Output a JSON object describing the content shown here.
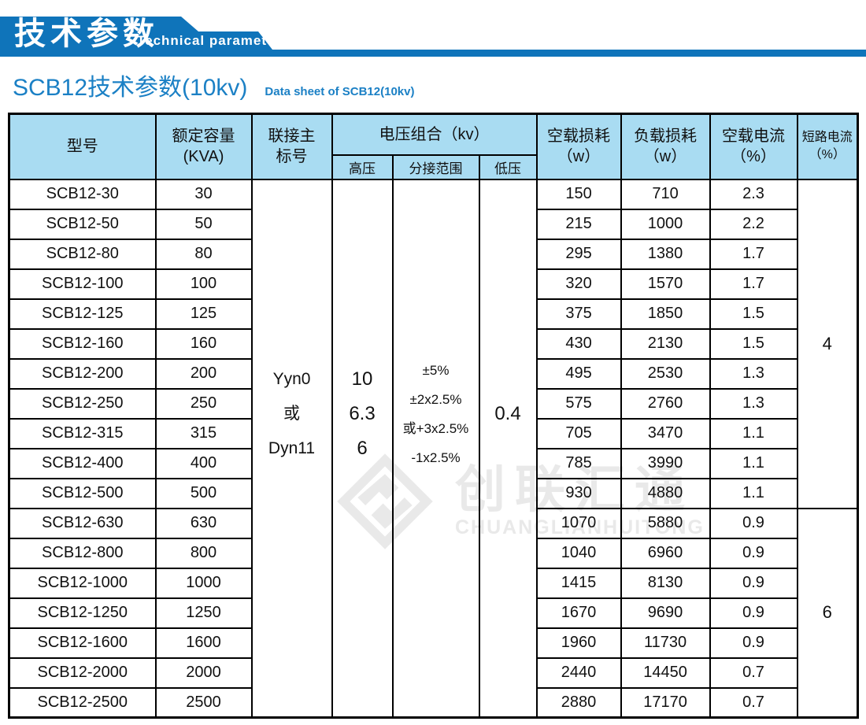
{
  "colors": {
    "banner_bg": "#0f74ba",
    "subtitle_text": "#1b80c5",
    "table_header_bg": "#a9dcf2",
    "watermark_gray": "#e9e9e9"
  },
  "banner": {
    "title_cn": "技术参数",
    "title_en": "Technical parameter"
  },
  "subtitle": {
    "text_cn": "SCB12技术参数(10kv)",
    "text_en": "Data sheet of SCB12(10kv)"
  },
  "watermark": {
    "logo": "diamond-logo",
    "text_cn": "创联汇通",
    "text_en": "CHUANGLIANHUITONG"
  },
  "table": {
    "header": {
      "model": "型号",
      "capacity_line1": "额定容量",
      "capacity_line2": "(KVA)",
      "connection_line1": "联接主",
      "connection_line2": "标号",
      "voltage_group": "电压组合（kv）",
      "hv": "高压",
      "tap_range": "分接范围",
      "lv": "低压",
      "no_load_loss_line1": "空载损耗",
      "no_load_loss_line2": "（w）",
      "load_loss_line1": "负载损耗",
      "load_loss_line2": "（w）",
      "no_load_current_line1": "空载电流",
      "no_load_current_line2": "（%）",
      "short_circuit_line1": "短路电流",
      "short_circuit_line2": "（%）"
    },
    "merged": {
      "connection_lines": [
        "Yyn0",
        "或",
        "Dyn11"
      ],
      "hv_lines": [
        "10",
        "6.3",
        "6"
      ],
      "tap_lines": [
        "±5%",
        "±2x2.5%",
        "或+3x2.5%",
        "-1x2.5%"
      ],
      "lv": "0.4",
      "short_circuit_group1": "4",
      "short_circuit_group1_rowspan": 11,
      "short_circuit_group2": "6",
      "short_circuit_group2_rowspan": 7
    },
    "rows": [
      {
        "model": "SCB12-30",
        "capacity": "30",
        "no_load_loss": "150",
        "load_loss": "710",
        "no_load_current": "2.3"
      },
      {
        "model": "SCB12-50",
        "capacity": "50",
        "no_load_loss": "215",
        "load_loss": "1000",
        "no_load_current": "2.2"
      },
      {
        "model": "SCB12-80",
        "capacity": "80",
        "no_load_loss": "295",
        "load_loss": "1380",
        "no_load_current": "1.7"
      },
      {
        "model": "SCB12-100",
        "capacity": "100",
        "no_load_loss": "320",
        "load_loss": "1570",
        "no_load_current": "1.7"
      },
      {
        "model": "SCB12-125",
        "capacity": "125",
        "no_load_loss": "375",
        "load_loss": "1850",
        "no_load_current": "1.5"
      },
      {
        "model": "SCB12-160",
        "capacity": "160",
        "no_load_loss": "430",
        "load_loss": "2130",
        "no_load_current": "1.5"
      },
      {
        "model": "SCB12-200",
        "capacity": "200",
        "no_load_loss": "495",
        "load_loss": "2530",
        "no_load_current": "1.3"
      },
      {
        "model": "SCB12-250",
        "capacity": "250",
        "no_load_loss": "575",
        "load_loss": "2760",
        "no_load_current": "1.3"
      },
      {
        "model": "SCB12-315",
        "capacity": "315",
        "no_load_loss": "705",
        "load_loss": "3470",
        "no_load_current": "1.1"
      },
      {
        "model": "SCB12-400",
        "capacity": "400",
        "no_load_loss": "785",
        "load_loss": "3990",
        "no_load_current": "1.1"
      },
      {
        "model": "SCB12-500",
        "capacity": "500",
        "no_load_loss": "930",
        "load_loss": "4880",
        "no_load_current": "1.1"
      },
      {
        "model": "SCB12-630",
        "capacity": "630",
        "no_load_loss": "1070",
        "load_loss": "5880",
        "no_load_current": "0.9"
      },
      {
        "model": "SCB12-800",
        "capacity": "800",
        "no_load_loss": "1040",
        "load_loss": "6960",
        "no_load_current": "0.9"
      },
      {
        "model": "SCB12-1000",
        "capacity": "1000",
        "no_load_loss": "1415",
        "load_loss": "8130",
        "no_load_current": "0.9"
      },
      {
        "model": "SCB12-1250",
        "capacity": "1250",
        "no_load_loss": "1670",
        "load_loss": "9690",
        "no_load_current": "0.9"
      },
      {
        "model": "SCB12-1600",
        "capacity": "1600",
        "no_load_loss": "1960",
        "load_loss": "11730",
        "no_load_current": "0.9"
      },
      {
        "model": "SCB12-2000",
        "capacity": "2000",
        "no_load_loss": "2440",
        "load_loss": "14450",
        "no_load_current": "0.7"
      },
      {
        "model": "SCB12-2500",
        "capacity": "2500",
        "no_load_loss": "2880",
        "load_loss": "17170",
        "no_load_current": "0.7"
      }
    ]
  }
}
